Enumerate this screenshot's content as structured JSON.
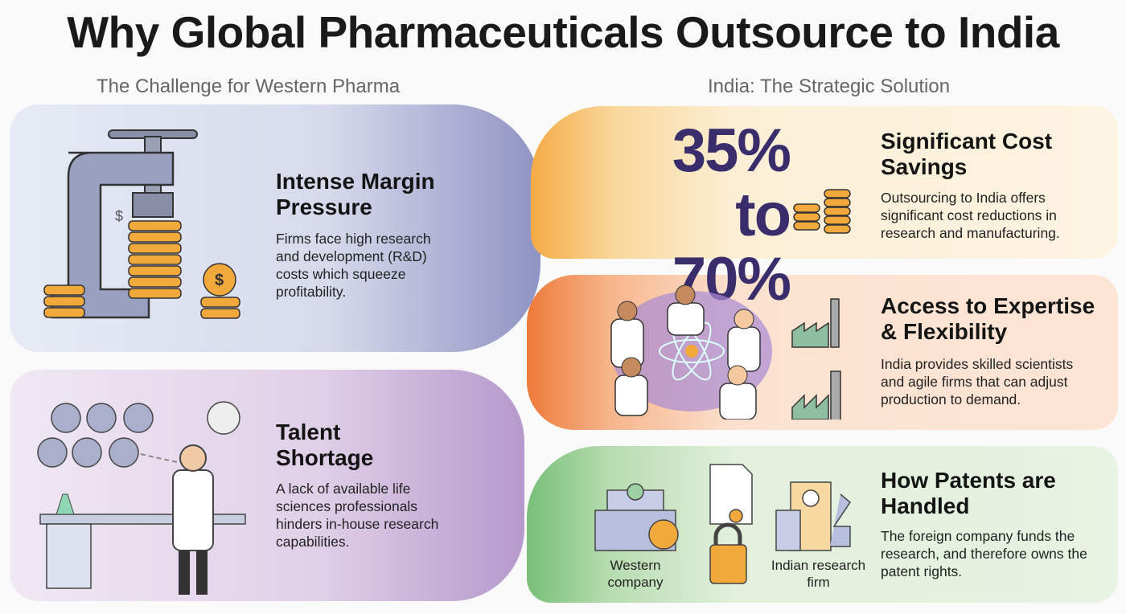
{
  "title": "Why Global Pharmaceuticals Outsource to India",
  "left_heading": "The Challenge for Western Pharma",
  "right_heading": "India: The Strategic Solution",
  "challenges": [
    {
      "title": "Intense Margin Pressure",
      "body": "Firms face high research and development (R&D) costs which squeeze profitability.",
      "icon": "vise-squeezing-coins-icon"
    },
    {
      "title": "Talent Shortage",
      "body": "A lack of available life sciences professionals hinders in-house research capabilities.",
      "icon": "stressed-scientist-icon"
    }
  ],
  "solutions": [
    {
      "title": "Significant Cost Savings",
      "body": "Outsourcing to India offers significant cost reductions in research and manufacturing.",
      "stat": "35% to 70%",
      "icon": "coin-stacks-icon"
    },
    {
      "title": "Access to Expertise & Flexibility",
      "body": "India provides skilled scientists and agile firms that can adjust production to demand.",
      "icon": "scientists-and-factories-icon"
    },
    {
      "title": "How Patents are Handled",
      "body": "The foreign company funds the research, and therefore owns the patent rights.",
      "labels": {
        "western": "Western company",
        "indian": "Indian research firm"
      },
      "icon": "buildings-patent-lock-icon"
    }
  ],
  "colors": {
    "stat": "#3a2d6c",
    "coin": "#f2a93b"
  }
}
